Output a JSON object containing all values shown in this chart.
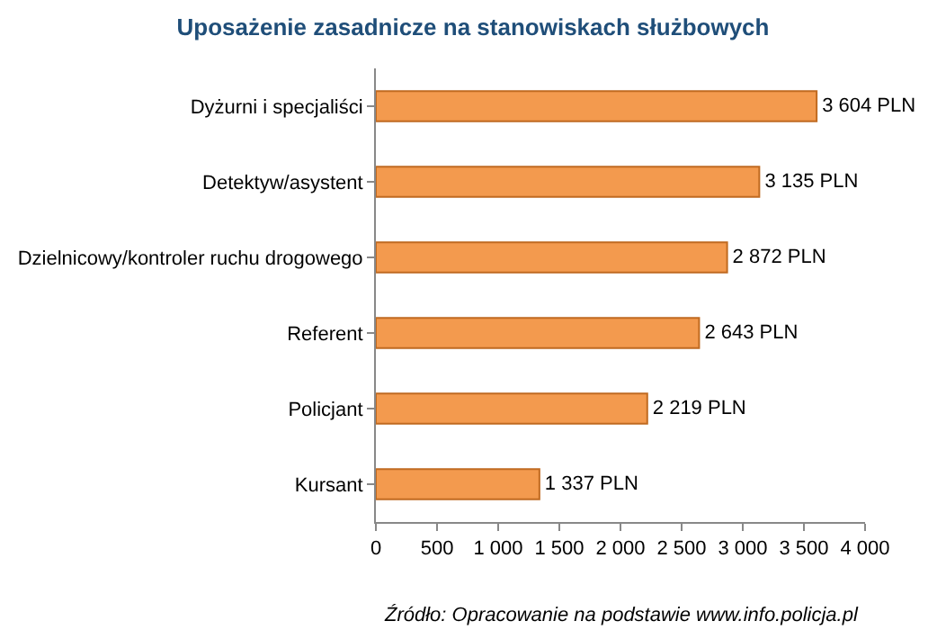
{
  "chart_data": {
    "type": "bar",
    "orientation": "horizontal",
    "title": "Uposażenie zasadnicze na stanowiskach służbowych",
    "categories": [
      "Dyżurni i specjaliści",
      "Detektyw/asystent",
      "Dzielnicowy/kontroler ruchu drogowego",
      "Referent",
      "Policjant",
      "Kursant"
    ],
    "values": [
      3604,
      3135,
      2872,
      2643,
      2219,
      1337
    ],
    "value_labels": [
      "3 604 PLN",
      "3 135 PLN",
      "2 872 PLN",
      "2 643 PLN",
      "2 219 PLN",
      "1 337 PLN"
    ],
    "color": "#f39a4e",
    "xlim": [
      0,
      4000
    ],
    "xticks": [
      0,
      500,
      {
        "value": 1000,
        "label": "1 000"
      },
      {
        "value": 1500,
        "label": "1 500"
      },
      {
        "value": 2000,
        "label": "2 000"
      },
      {
        "value": 2500,
        "label": "2 500"
      },
      {
        "value": 3000,
        "label": "3 000"
      },
      {
        "value": 3500,
        "label": "3 500"
      },
      {
        "value": 4000,
        "label": "4 000"
      }
    ],
    "grid": false,
    "legend": false,
    "annotations": [
      "Źródło: Opracowanie na podstawie www.info.policja.pl"
    ]
  }
}
